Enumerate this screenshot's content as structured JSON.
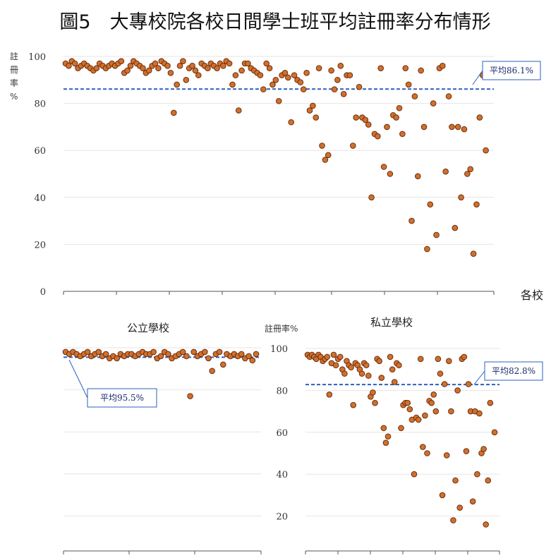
{
  "title": "圖5　大專校院各校日間學士班平均註冊率分布情形",
  "chart_data": [
    {
      "id": "all",
      "type": "scatter",
      "title": "",
      "ylabel": "註冊率%",
      "xlabel": "各校",
      "ylim": [
        0,
        100
      ],
      "yticks": [
        0,
        20,
        40,
        60,
        80,
        100
      ],
      "average": 86.1,
      "average_label": "平均86.1%",
      "grid": true,
      "y": [
        97,
        96,
        98,
        97,
        95,
        96,
        97,
        96,
        95,
        94,
        95,
        97,
        96,
        95,
        96,
        97,
        96,
        97,
        98,
        93,
        94,
        96,
        98,
        97,
        96,
        95,
        93,
        94,
        96,
        97,
        95,
        98,
        97,
        96,
        93,
        76,
        88,
        96,
        98,
        90,
        95,
        96,
        94,
        92,
        97,
        96,
        95,
        97,
        96,
        95,
        97,
        96,
        98,
        97,
        88,
        92,
        77,
        94,
        97,
        97,
        95,
        94,
        93,
        92,
        86,
        97,
        95,
        88,
        90,
        81,
        92,
        93,
        91,
        72,
        92,
        90,
        89,
        86,
        93,
        77,
        79,
        74,
        95,
        62,
        56,
        58,
        94,
        86,
        90,
        96,
        84,
        92,
        92,
        62,
        74,
        87,
        74,
        73,
        71,
        40,
        67,
        66,
        95,
        53,
        70,
        50,
        75,
        74,
        78,
        67,
        95,
        88,
        30,
        83,
        49,
        94,
        70,
        18,
        37,
        80,
        24,
        95,
        96,
        51,
        83,
        70,
        27,
        70,
        40,
        69,
        50,
        52,
        16,
        37,
        74,
        92,
        60,
        96
      ]
    },
    {
      "id": "public",
      "type": "scatter",
      "title": "公立學校",
      "ylim": [
        0,
        100
      ],
      "average": 95.5,
      "average_label": "平均95.5%",
      "grid": true,
      "y": [
        98,
        97,
        98,
        97,
        96,
        97,
        98,
        96,
        97,
        98,
        96,
        97,
        95,
        96,
        95,
        97,
        96,
        97,
        97,
        96,
        97,
        98,
        97,
        97,
        98,
        95,
        96,
        98,
        97,
        95,
        96,
        97,
        98,
        96,
        77,
        98,
        96,
        97,
        98,
        95,
        89,
        97,
        98,
        92,
        97,
        96,
        97,
        96,
        97,
        95,
        96,
        94,
        97
      ]
    },
    {
      "id": "private",
      "type": "scatter",
      "title": "私立學校",
      "ylabel": "註冊率%",
      "ylim": [
        0,
        100
      ],
      "yticks": [
        0,
        20,
        40,
        60,
        80,
        100
      ],
      "average": 82.8,
      "average_label": "平均82.8%",
      "grid": true,
      "y": [
        97,
        96,
        97,
        96,
        95,
        97,
        96,
        94,
        95,
        96,
        78,
        93,
        97,
        92,
        95,
        96,
        90,
        88,
        94,
        92,
        91,
        73,
        93,
        92,
        90,
        88,
        93,
        92,
        87,
        77,
        79,
        74,
        95,
        94,
        86,
        62,
        55,
        58,
        96,
        90,
        84,
        93,
        92,
        62,
        73,
        74,
        74,
        71,
        66,
        40,
        67,
        66,
        95,
        53,
        68,
        50,
        75,
        74,
        78,
        70,
        95,
        88,
        30,
        83,
        49,
        94,
        70,
        18,
        37,
        80,
        24,
        95,
        96,
        51,
        83,
        70,
        27,
        70,
        40,
        69,
        50,
        52,
        16,
        37,
        74,
        92,
        60
      ]
    }
  ]
}
